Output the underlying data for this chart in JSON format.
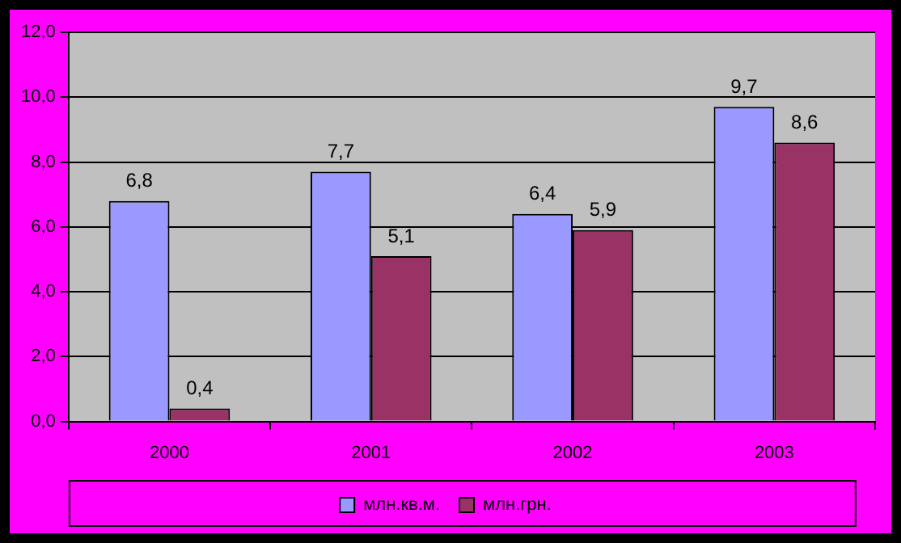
{
  "chart_data": {
    "type": "bar",
    "categories": [
      "2000",
      "2001",
      "2002",
      "2003"
    ],
    "series": [
      {
        "name": "млн.кв.м.",
        "color": "#9999ff",
        "values": [
          6.8,
          7.7,
          6.4,
          9.7
        ],
        "value_labels": [
          "6,8",
          "7,7",
          "6,4",
          "9,7"
        ]
      },
      {
        "name": "млн.грн.",
        "color": "#993366",
        "values": [
          0.4,
          5.1,
          5.9,
          8.6
        ],
        "value_labels": [
          "0,4",
          "5,1",
          "5,9",
          "8,6"
        ]
      }
    ],
    "ylim": [
      0,
      12
    ],
    "yticks": [
      {
        "value": 0,
        "label": "0,0"
      },
      {
        "value": 2,
        "label": "2,0"
      },
      {
        "value": 4,
        "label": "4,0"
      },
      {
        "value": 6,
        "label": "6,0"
      },
      {
        "value": 8,
        "label": "8,0"
      },
      {
        "value": 10,
        "label": "10,0"
      },
      {
        "value": 12,
        "label": "12,0"
      }
    ],
    "grid": "y",
    "legend": "bottom"
  }
}
